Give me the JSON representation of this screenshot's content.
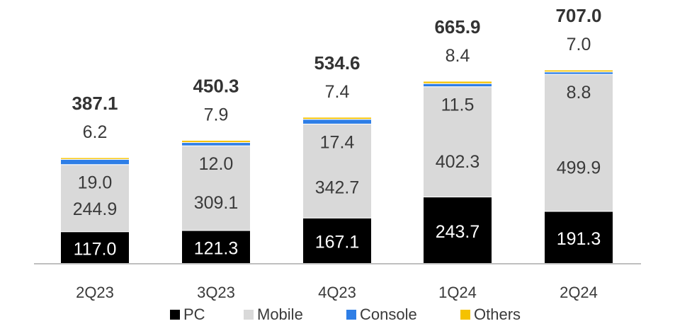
{
  "chart_data": {
    "type": "bar",
    "stacked": true,
    "title": "",
    "xlabel": "",
    "ylabel": "",
    "ylim": [
      0,
      707
    ],
    "grid": false,
    "legend_placement": "bottom",
    "categories": [
      "2Q23",
      "3Q23",
      "4Q23",
      "1Q24",
      "2Q24"
    ],
    "totals": [
      "387.1",
      "450.3",
      "534.6",
      "665.9",
      "707.0"
    ],
    "series": [
      {
        "name": "PC",
        "color": "#000000",
        "values": [
          117.0,
          121.3,
          167.1,
          243.7,
          191.3
        ],
        "labels": [
          "117.0",
          "121.3",
          "167.1",
          "243.7",
          "191.3"
        ]
      },
      {
        "name": "Mobile",
        "color": "#d9d9d9",
        "values": [
          244.9,
          309.1,
          342.7,
          402.3,
          499.9
        ],
        "labels": [
          "244.9",
          "309.1",
          "342.7",
          "402.3",
          "499.9"
        ]
      },
      {
        "name": "Console",
        "color": "#2e7ee6",
        "values": [
          19.0,
          12.0,
          17.4,
          11.5,
          8.8
        ],
        "labels": [
          "19.0",
          "12.0",
          "17.4",
          "11.5",
          "8.8"
        ]
      },
      {
        "name": "Others",
        "color": "#f5c200",
        "values": [
          6.2,
          7.9,
          7.4,
          8.4,
          7.0
        ],
        "labels": [
          "6.2",
          "7.9",
          "7.4",
          "8.4",
          "7.0"
        ]
      }
    ]
  }
}
